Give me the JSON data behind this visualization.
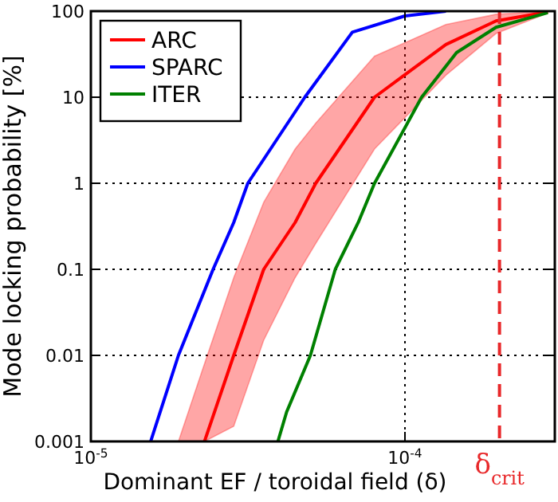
{
  "chart_data": {
    "type": "line",
    "xlabel": "Dominant EF / toroidal field (δ)",
    "ylabel": "Mode locking probability [%]",
    "log": "xy",
    "grid": true,
    "legend": "top left",
    "line_style": "solid",
    "marker": "none",
    "xlim": [
      1e-05,
      0.0003
    ],
    "xticks": [
      {
        "value": 1e-05,
        "label": "10$^{-5}$"
      },
      {
        "value": 0.0001,
        "label": "10$^{-4}$"
      }
    ],
    "ylim": [
      0.001,
      100
    ],
    "yticks": [
      {
        "value": 0.001,
        "label": "0.001"
      },
      {
        "value": 0.01,
        "label": "0.01"
      },
      {
        "value": 0.1,
        "label": "0.1"
      },
      {
        "value": 1,
        "label": "1"
      },
      {
        "value": 10,
        "label": "10"
      },
      {
        "value": 100,
        "label": "100"
      }
    ],
    "series": [
      {
        "name": "ARC",
        "color": "#ff0000",
        "x": [
          1.9e-05,
          2.3e-05,
          2.85e-05,
          3.55e-05,
          4.47e-05,
          5.2e-05,
          8e-05,
          0.000135,
          0.000195,
          0.000285
        ],
        "values": [
          null,
          0.001,
          0.01,
          0.1,
          0.35,
          1,
          10,
          41,
          77,
          98
        ],
        "lower": [
          0.001,
          0.001,
          0.0015,
          0.015,
          0.08,
          0.2,
          2.5,
          18,
          55,
          95
        ],
        "upper": [
          0.001,
          0.008,
          0.08,
          0.6,
          2.5,
          5,
          30,
          70,
          92,
          100
        ]
      },
      {
        "name": "SPARC",
        "color": "#0000ff",
        "x": [
          1.55e-05,
          1.9e-05,
          2.45e-05,
          2.85e-05,
          3.16e-05,
          4.8e-05,
          6.8e-05,
          0.0001,
          0.000135
        ],
        "values": [
          0.001,
          0.01,
          0.1,
          0.35,
          1,
          10,
          57,
          88,
          100
        ]
      },
      {
        "name": "ITER",
        "color": "#008000",
        "x": [
          3.94e-05,
          4.2e-05,
          5e-05,
          6e-05,
          7.1e-05,
          8e-05,
          0.000113,
          0.000146,
          0.000195,
          0.000285
        ],
        "values": [
          0.001,
          0.0022,
          0.01,
          0.1,
          0.35,
          1,
          10,
          33,
          65,
          96
        ]
      }
    ],
    "ref_lines": [
      {
        "axis": "x",
        "value": 0.0002,
        "label": "δ$_{crit}$",
        "color": "#e8282a",
        "line_style": "dashed"
      }
    ]
  }
}
